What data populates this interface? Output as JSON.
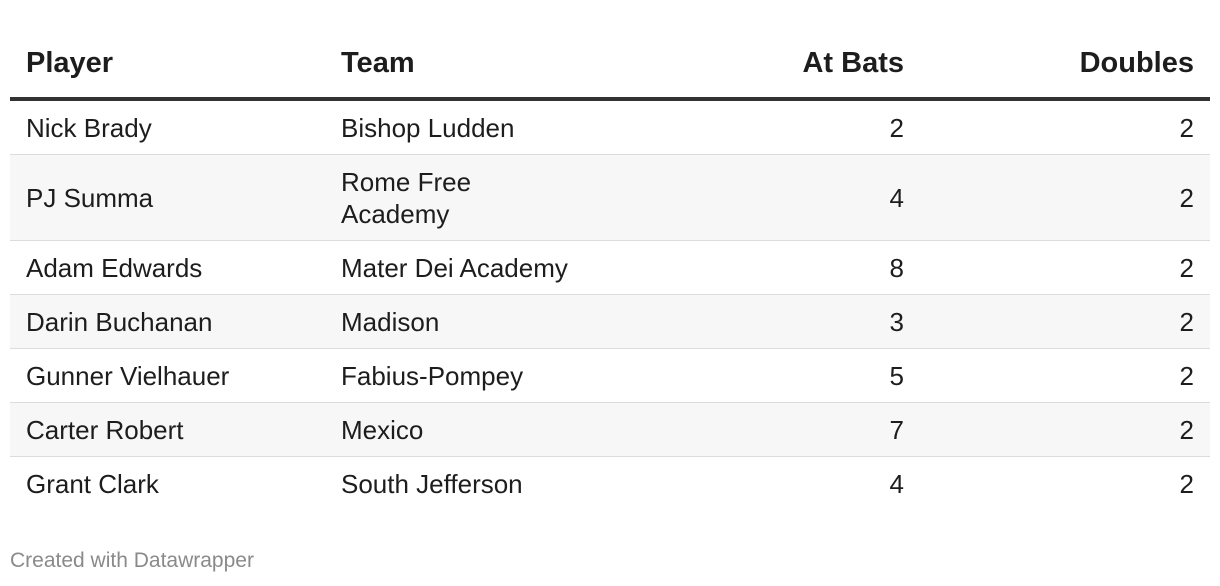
{
  "chart_data": {
    "type": "table",
    "columns": [
      "Player",
      "Team",
      "At Bats",
      "Doubles"
    ],
    "rows": [
      {
        "player": "Nick Brady",
        "team": "Bishop Ludden",
        "at_bats": "2",
        "doubles": "2"
      },
      {
        "player": "PJ Summa",
        "team": "Rome Free Academy",
        "at_bats": "4",
        "doubles": "2"
      },
      {
        "player": "Adam Edwards",
        "team": "Mater Dei Academy",
        "at_bats": "8",
        "doubles": "2"
      },
      {
        "player": "Darin Buchanan",
        "team": "Madison",
        "at_bats": "3",
        "doubles": "2"
      },
      {
        "player": "Gunner Vielhauer",
        "team": "Fabius-Pompey",
        "at_bats": "5",
        "doubles": "2"
      },
      {
        "player": "Carter Robert",
        "team": "Mexico",
        "at_bats": "7",
        "doubles": "2"
      },
      {
        "player": "Grant Clark",
        "team": "South Jefferson",
        "at_bats": "4",
        "doubles": "2"
      }
    ]
  },
  "footer": {
    "credit": "Created with Datawrapper"
  }
}
